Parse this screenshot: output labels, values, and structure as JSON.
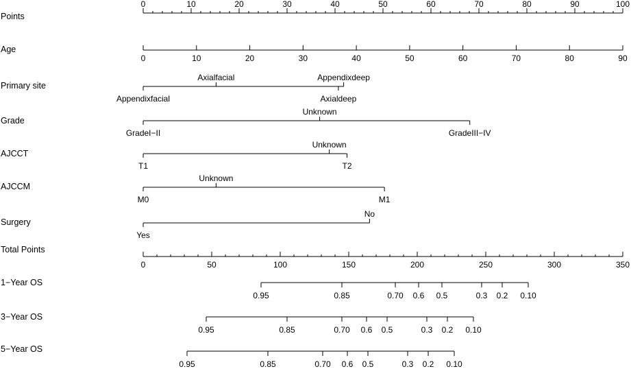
{
  "chart_data": {
    "type": "nomogram",
    "rows": [
      {
        "label": "Points",
        "kind": "scale",
        "ticks": [
          0,
          10,
          20,
          30,
          40,
          50,
          60,
          70,
          80,
          90,
          100
        ],
        "minor_step": 2,
        "labels_above": true
      },
      {
        "label": "Age",
        "kind": "scale",
        "ticks": [
          0,
          10,
          20,
          30,
          40,
          50,
          60,
          70,
          80,
          90
        ],
        "labels_above": false
      },
      {
        "label": "Primary site",
        "kind": "categorical",
        "levels": [
          {
            "text": "Appendixfacial",
            "points": 0,
            "pos": "below"
          },
          {
            "text": "Axialfacial",
            "points": 15.2,
            "pos": "above"
          },
          {
            "text": "Axialdeep",
            "points": 40.7,
            "pos": "below"
          },
          {
            "text": "Appendixdeep",
            "points": 41.8,
            "pos": "above"
          }
        ]
      },
      {
        "label": "Grade",
        "kind": "categorical",
        "levels": [
          {
            "text": "GradeI−II",
            "points": 0,
            "pos": "below"
          },
          {
            "text": "Unknown",
            "points": 36.8,
            "pos": "above"
          },
          {
            "text": "GradeIII−IV",
            "points": 68.1,
            "pos": "below"
          }
        ]
      },
      {
        "label": "AJCCT",
        "kind": "categorical",
        "levels": [
          {
            "text": "T1",
            "points": 0,
            "pos": "below"
          },
          {
            "text": "Unknown",
            "points": 38.8,
            "pos": "above"
          },
          {
            "text": "T2",
            "points": 42.5,
            "pos": "below"
          }
        ]
      },
      {
        "label": "AJCCM",
        "kind": "categorical",
        "levels": [
          {
            "text": "M0",
            "points": 0,
            "pos": "below"
          },
          {
            "text": "Unknown",
            "points": 15.2,
            "pos": "above"
          },
          {
            "text": "M1",
            "points": 50.3,
            "pos": "below"
          }
        ]
      },
      {
        "label": "Surgery",
        "kind": "categorical",
        "levels": [
          {
            "text": "Yes",
            "points": 0,
            "pos": "below"
          },
          {
            "text": "No",
            "points": 47.2,
            "pos": "above"
          }
        ]
      },
      {
        "label": "Total Points",
        "kind": "scale",
        "ticks": [
          0,
          50,
          100,
          150,
          200,
          250,
          300,
          350
        ],
        "minor_step": 10,
        "labels_above": false
      },
      {
        "label": "1−Year OS",
        "kind": "probability",
        "ticks": [
          {
            "text": "0.95",
            "total": 86
          },
          {
            "text": "0.85",
            "total": 145
          },
          {
            "text": "0.70",
            "total": 184
          },
          {
            "text": "0.6",
            "total": 201
          },
          {
            "text": "0.5",
            "total": 218
          },
          {
            "text": "0.3",
            "total": 247
          },
          {
            "text": "0.2",
            "total": 262
          },
          {
            "text": "0.10",
            "total": 281
          }
        ]
      },
      {
        "label": "3−Year OS",
        "kind": "probability",
        "ticks": [
          {
            "text": "0.95",
            "total": 46
          },
          {
            "text": "0.85",
            "total": 105
          },
          {
            "text": "0.70",
            "total": 145
          },
          {
            "text": "0.6",
            "total": 163
          },
          {
            "text": "0.5",
            "total": 178
          },
          {
            "text": "0.3",
            "total": 207
          },
          {
            "text": "0.2",
            "total": 222
          },
          {
            "text": "0.10",
            "total": 241
          }
        ]
      },
      {
        "label": "5−Year OS",
        "kind": "probability",
        "ticks": [
          {
            "text": "0.95",
            "total": 32
          },
          {
            "text": "0.85",
            "total": 91
          },
          {
            "text": "0.70",
            "total": 131
          },
          {
            "text": "0.6",
            "total": 149
          },
          {
            "text": "0.5",
            "total": 164
          },
          {
            "text": "0.3",
            "total": 193
          },
          {
            "text": "0.2",
            "total": 208
          },
          {
            "text": "0.10",
            "total": 227
          }
        ]
      }
    ],
    "points_range": [
      0,
      100
    ],
    "age_range": [
      0,
      90
    ],
    "total_points_range": [
      0,
      350
    ]
  }
}
